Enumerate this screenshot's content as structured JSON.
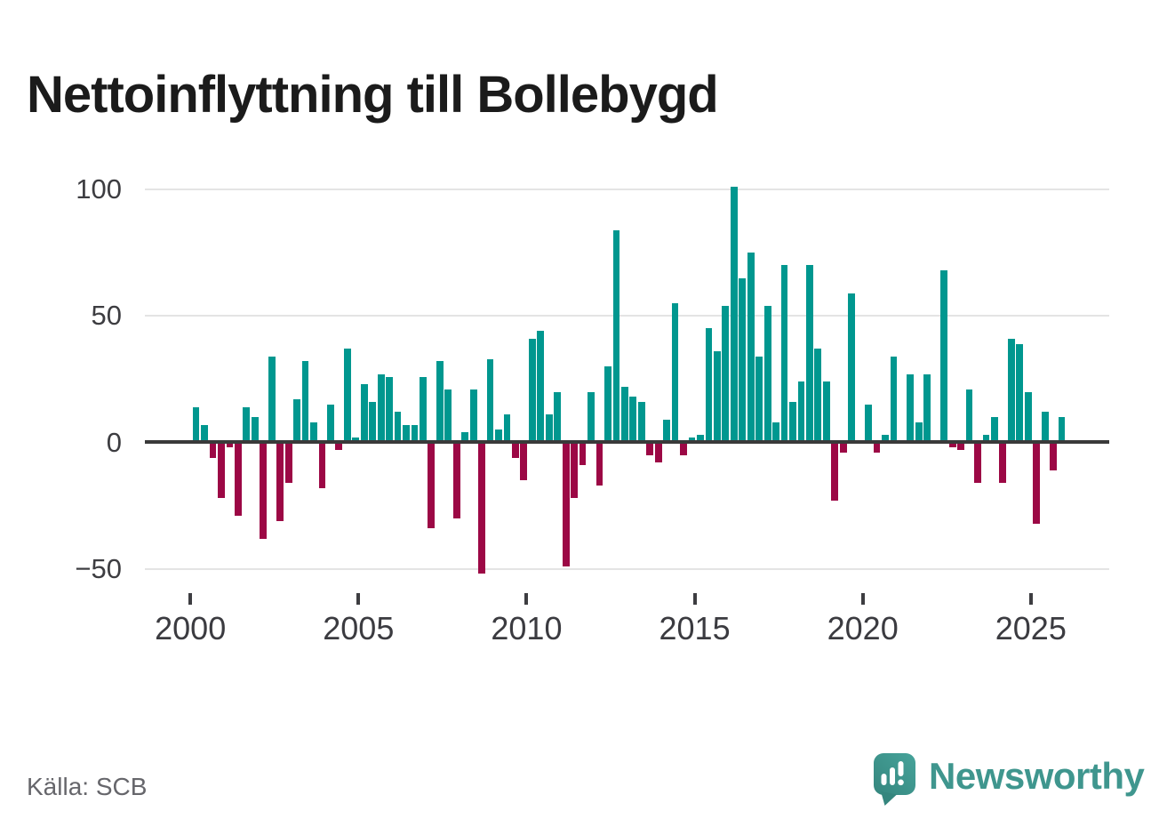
{
  "title": "Nettoinflyttning till Bollebygd",
  "source": "Källa: SCB",
  "logo": {
    "brand": "Newsworthy"
  },
  "colors": {
    "positive_bar": "#00978f",
    "negative_bar": "#9c0845",
    "axis": "#3a3a3a",
    "grid": "#e4e4e4",
    "title_text": "#1b1b1b",
    "tick_text": "#3d3d41",
    "source_text": "#66666b",
    "logo_teal": "#3f968e"
  },
  "y_axis": {
    "tick_values": [
      100,
      50,
      0,
      -50
    ],
    "tick_labels": [
      "100",
      "50",
      "0",
      "−50"
    ]
  },
  "x_axis": {
    "tick_labels": [
      "2000",
      "2005",
      "2010",
      "2015",
      "2020",
      "2025"
    ]
  },
  "chart_data": {
    "type": "bar",
    "title": "Nettoinflyttning till Bollebygd",
    "xlabel": "",
    "ylabel": "",
    "frequency": "quarterly",
    "start_year": 2000,
    "start_quarter": 1,
    "ylim": [
      -60,
      110
    ],
    "grid": "horizontal",
    "values": [
      14,
      7,
      -6,
      -22,
      -2,
      -29,
      14,
      10,
      -38,
      34,
      -31,
      -16,
      17,
      32,
      8,
      -18,
      15,
      -3,
      37,
      2,
      23,
      16,
      27,
      26,
      12,
      7,
      7,
      26,
      -34,
      32,
      21,
      -30,
      4,
      21,
      -52,
      33,
      5,
      11,
      -6,
      -15,
      41,
      44,
      11,
      20,
      -49,
      -22,
      -9,
      20,
      -17,
      30,
      84,
      22,
      18,
      16,
      -5,
      -8,
      9,
      55,
      -5,
      2,
      3,
      45,
      36,
      54,
      101,
      65,
      75,
      34,
      54,
      8,
      70,
      16,
      24,
      70,
      37,
      24,
      -23,
      -4,
      59,
      0,
      15,
      -4,
      3,
      34,
      0,
      27,
      8,
      27,
      0,
      68,
      -2,
      -3,
      21,
      -16,
      3,
      10,
      -16,
      41,
      39,
      20,
      -32,
      12,
      -11,
      10
    ]
  }
}
